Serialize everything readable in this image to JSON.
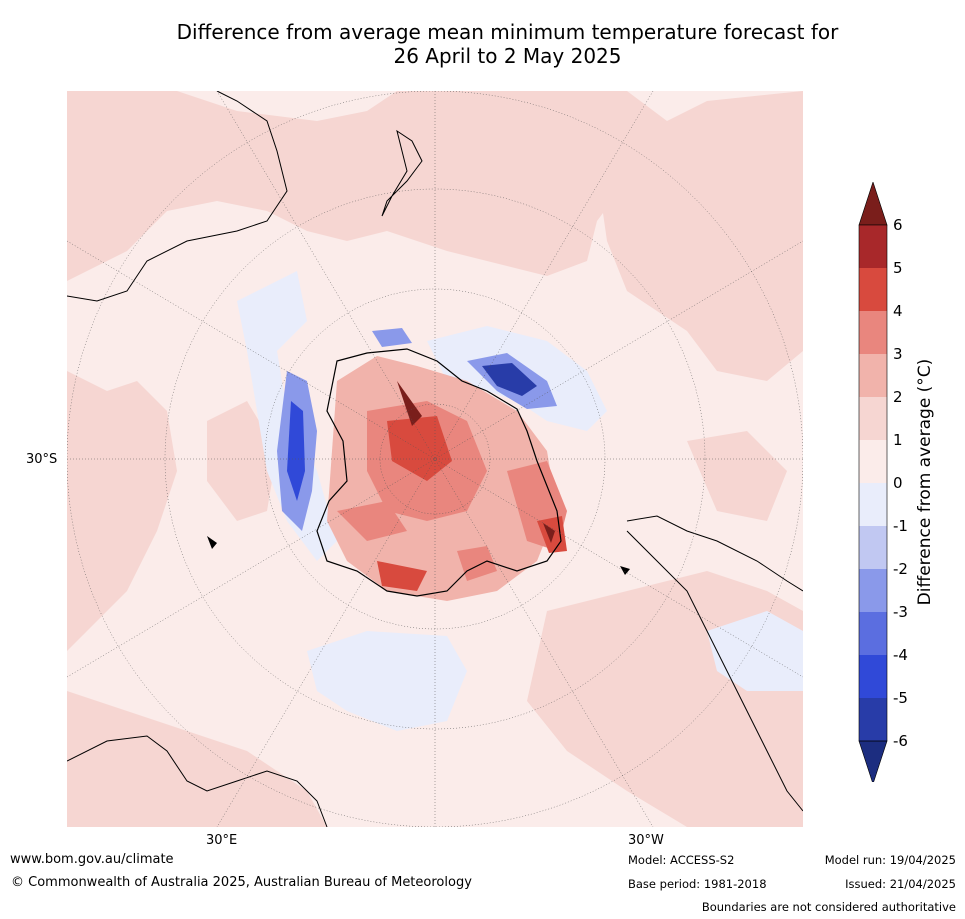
{
  "title": {
    "line1": "Difference from average mean minimum temperature forecast for",
    "line2": "26 April to 2 May 2025"
  },
  "map": {
    "projection": "south polar stereographic",
    "lat_labels": [
      "30°S"
    ],
    "lon_labels": [
      "30°E",
      "30°W"
    ]
  },
  "colorbar": {
    "label": "Difference from average (°C)",
    "ticks": [
      "6",
      "5",
      "4",
      "3",
      "2",
      "1",
      "0",
      "-1",
      "-2",
      "-3",
      "-4",
      "-5",
      "-6"
    ],
    "colors": [
      "#7a1e1b",
      "#a8282a",
      "#d84a3e",
      "#e9867e",
      "#f1b3ab",
      "#f6d6d2",
      "#fbecea",
      "#e9edfb",
      "#c1c8f2",
      "#8a99ea",
      "#5b6ee0",
      "#3049d8",
      "#283ca8",
      "#1c2d80"
    ]
  },
  "footer": {
    "website": "www.bom.gov.au/climate",
    "copyright": "© Commonwealth of Australia 2025, Australian Bureau of Meteorology",
    "model": "Model: ACCESS-S2",
    "base_period": "Base period: 1981-2018",
    "model_run": "Model run: 19/04/2025",
    "issued": "Issued: 21/04/2025",
    "disclaimer": "Boundaries are not considered authoritative"
  }
}
